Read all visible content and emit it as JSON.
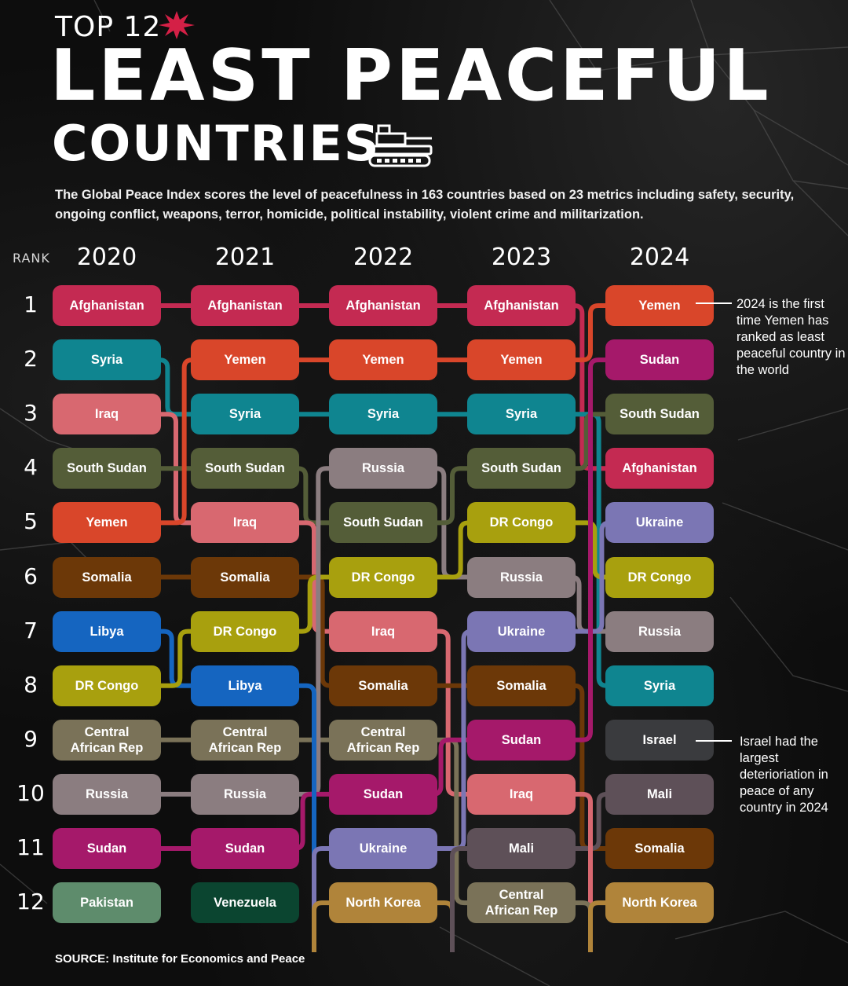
{
  "header": {
    "kicker": "TOP 12",
    "title_line1": "LEAST PEACEFUL",
    "title_line2": "COUNTRIES",
    "description": "The Global Peace Index scores the level of peacefulness in 163 countries based on 23 metrics including safety, security, ongoing conflict, weapons, terror, homicide, political instability, violent crime and militarization.",
    "icons": [
      "burst-icon",
      "tank-icon"
    ]
  },
  "chart_data": {
    "type": "table",
    "rank_label": "RANK",
    "ranks": [
      1,
      2,
      3,
      4,
      5,
      6,
      7,
      8,
      9,
      10,
      11,
      12
    ],
    "years": [
      "2020",
      "2021",
      "2022",
      "2023",
      "2024"
    ],
    "rankings": {
      "2020": [
        "Afghanistan",
        "Syria",
        "Iraq",
        "South Sudan",
        "Yemen",
        "Somalia",
        "Libya",
        "DR Congo",
        "Central\nAfrican Rep",
        "Russia",
        "Sudan",
        "Pakistan"
      ],
      "2021": [
        "Afghanistan",
        "Yemen",
        "Syria",
        "South Sudan",
        "Iraq",
        "Somalia",
        "DR Congo",
        "Libya",
        "Central\nAfrican Rep",
        "Russia",
        "Sudan",
        "Venezuela"
      ],
      "2022": [
        "Afghanistan",
        "Yemen",
        "Syria",
        "Russia",
        "South Sudan",
        "DR Congo",
        "Iraq",
        "Somalia",
        "Central\nAfrican Rep",
        "Sudan",
        "Ukraine",
        "North Korea"
      ],
      "2023": [
        "Afghanistan",
        "Yemen",
        "Syria",
        "South Sudan",
        "DR Congo",
        "Russia",
        "Ukraine",
        "Somalia",
        "Sudan",
        "Iraq",
        "Mali",
        "Central\nAfrican Rep"
      ],
      "2024": [
        "Yemen",
        "Sudan",
        "South Sudan",
        "Afghanistan",
        "Ukraine",
        "DR Congo",
        "Russia",
        "Syria",
        "Israel",
        "Mali",
        "Somalia",
        "North Korea"
      ]
    },
    "country_colors": {
      "Afghanistan": "#c42a52",
      "Yemen": "#d9462a",
      "Syria": "#0f8590",
      "Iraq": "#d86870",
      "South Sudan": "#545d38",
      "Somalia": "#6c3808",
      "Libya": "#1565c0",
      "DR Congo": "#a8a00e",
      "Central\nAfrican Rep": "#7a7258",
      "Russia": "#8b7d80",
      "Sudan": "#a5196a",
      "Pakistan": "#5e8c6c",
      "Venezuela": "#0b4530",
      "Ukraine": "#7b76b4",
      "North Korea": "#b0843a",
      "Mali": "#5e5058",
      "Israel": "#3a3b3e"
    },
    "annotations": [
      {
        "year": "2024",
        "rank": 1,
        "text": "2024 is the first time Yemen has ranked as least peaceful country in the world"
      },
      {
        "year": "2024",
        "rank": 9,
        "text": "Israel had the largest deterioriation in peace of any country in 2024"
      }
    ]
  },
  "source": "SOURCE: Institute for Economics and Peace"
}
